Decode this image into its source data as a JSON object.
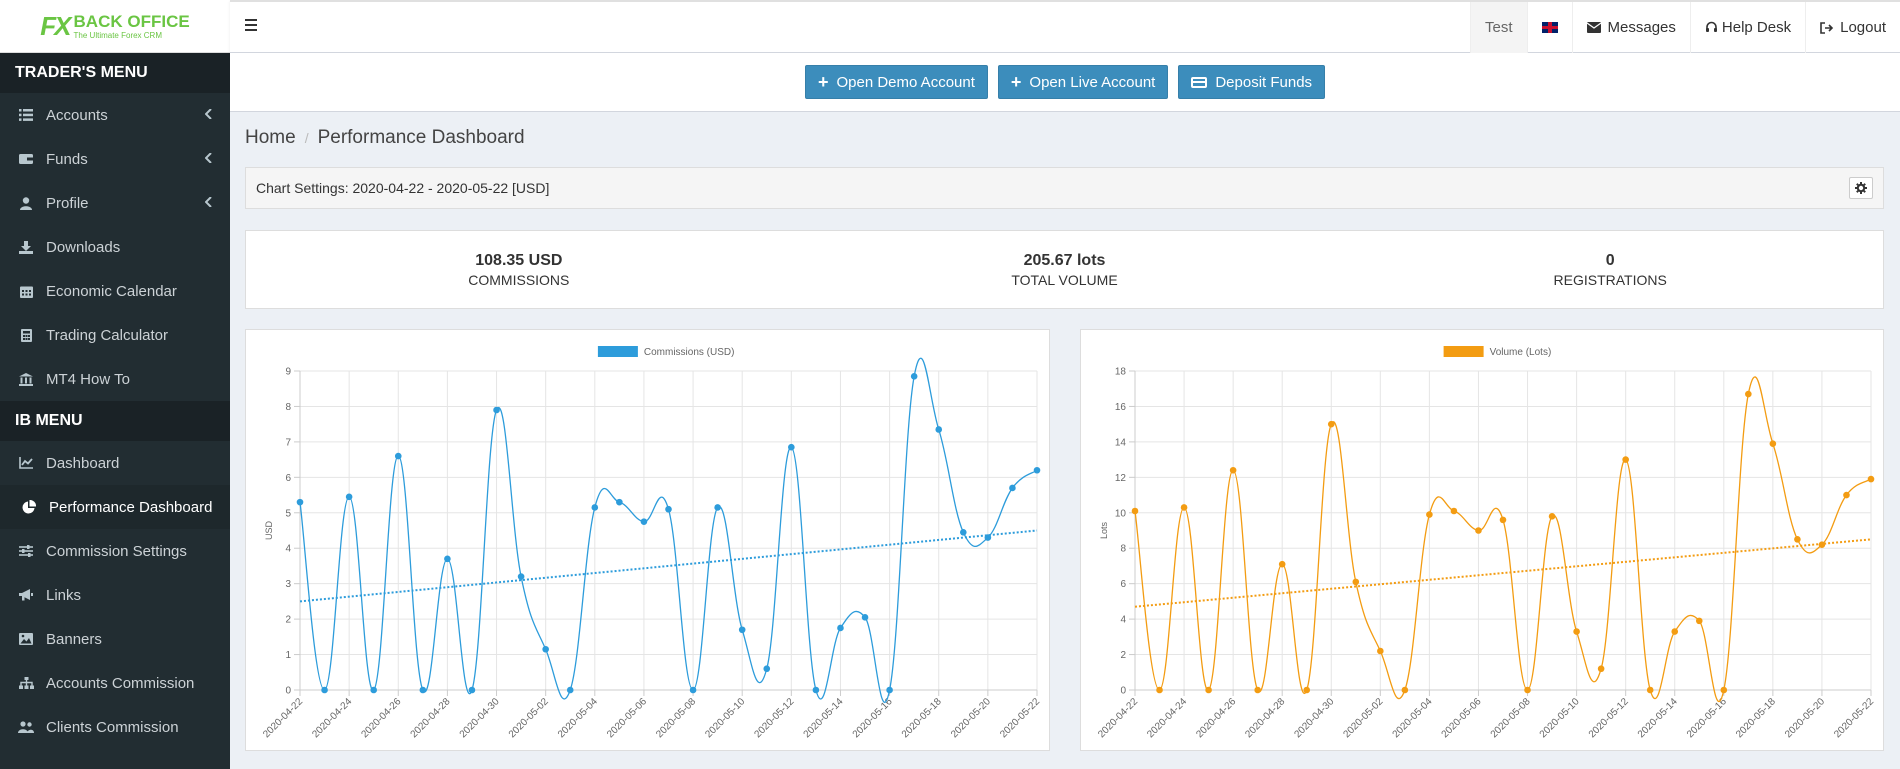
{
  "logo": {
    "mark": "FX",
    "title": "BACK OFFICE",
    "subtitle": "The Ultimate Forex CRM"
  },
  "sidebar": {
    "traders_header": "TRADER'S MENU",
    "traders_items": [
      {
        "label": "Accounts",
        "icon": "list-icon",
        "has_submenu": true
      },
      {
        "label": "Funds",
        "icon": "wallet-icon",
        "has_submenu": true
      },
      {
        "label": "Profile",
        "icon": "user-icon",
        "has_submenu": true
      },
      {
        "label": "Downloads",
        "icon": "download-icon",
        "has_submenu": false
      },
      {
        "label": "Economic Calendar",
        "icon": "calendar-icon",
        "has_submenu": false
      },
      {
        "label": "Trading Calculator",
        "icon": "calculator-icon",
        "has_submenu": false
      },
      {
        "label": "MT4 How To",
        "icon": "bank-icon",
        "has_submenu": false
      }
    ],
    "ib_header": "IB MENU",
    "ib_items": [
      {
        "label": "Dashboard",
        "icon": "line-chart-icon",
        "active": false
      },
      {
        "label": "Performance Dashboard",
        "icon": "pie-chart-icon",
        "active": true
      },
      {
        "label": "Commission Settings",
        "icon": "sliders-icon",
        "active": false
      },
      {
        "label": "Links",
        "icon": "megaphone-icon",
        "active": false
      },
      {
        "label": "Banners",
        "icon": "image-icon",
        "active": false
      },
      {
        "label": "Accounts Commission",
        "icon": "sitemap-icon",
        "active": false
      },
      {
        "label": "Clients Commission",
        "icon": "users-icon",
        "active": false
      }
    ]
  },
  "topbar": {
    "user": "Test",
    "messages": "Messages",
    "help_desk": "Help Desk",
    "logout": "Logout"
  },
  "actions": {
    "open_demo": "Open Demo Account",
    "open_live": "Open Live Account",
    "deposit": "Deposit Funds"
  },
  "breadcrumb": {
    "home": "Home",
    "current": "Performance Dashboard"
  },
  "chart_settings": "Chart Settings: 2020-04-22 - 2020-05-22 [USD]",
  "stats": [
    {
      "value": "108.35 USD",
      "label": "COMMISSIONS"
    },
    {
      "value": "205.67 lots",
      "label": "TOTAL VOLUME"
    },
    {
      "value": "0",
      "label": "REGISTRATIONS"
    }
  ],
  "chart_data": [
    {
      "type": "line",
      "legend": "Commissions (USD)",
      "ylabel": "USD",
      "color": "#2d9cdb",
      "ylim": [
        0,
        9
      ],
      "yticks": [
        0,
        1,
        2,
        3,
        4,
        5,
        6,
        7,
        8,
        9
      ],
      "x": [
        "2020-04-22",
        "2020-04-23",
        "2020-04-24",
        "2020-04-25",
        "2020-04-26",
        "2020-04-27",
        "2020-04-28",
        "2020-04-29",
        "2020-04-30",
        "2020-05-01",
        "2020-05-02",
        "2020-05-03",
        "2020-05-04",
        "2020-05-05",
        "2020-05-06",
        "2020-05-07",
        "2020-05-08",
        "2020-05-09",
        "2020-05-10",
        "2020-05-11",
        "2020-05-12",
        "2020-05-13",
        "2020-05-14",
        "2020-05-15",
        "2020-05-16",
        "2020-05-17",
        "2020-05-18",
        "2020-05-19",
        "2020-05-20",
        "2020-05-21",
        "2020-05-22"
      ],
      "xtick_labels": [
        "2020-04-22",
        "2020-04-24",
        "2020-04-26",
        "2020-04-28",
        "2020-04-30",
        "2020-05-02",
        "2020-05-04",
        "2020-05-06",
        "2020-05-08",
        "2020-05-10",
        "2020-05-12",
        "2020-05-14",
        "2020-05-16",
        "2020-05-18",
        "2020-05-20",
        "2020-05-22"
      ],
      "values": [
        5.3,
        0,
        5.45,
        0,
        6.6,
        0,
        3.7,
        0,
        7.9,
        3.2,
        1.15,
        0,
        5.15,
        5.3,
        4.75,
        5.1,
        0,
        5.15,
        1.7,
        0.6,
        6.85,
        0,
        1.75,
        2.05,
        0,
        8.85,
        7.35,
        4.45,
        4.3,
        5.7,
        6.2
      ],
      "trend": [
        2.5,
        4.5
      ]
    },
    {
      "type": "line",
      "legend": "Volume (Lots)",
      "ylabel": "Lots",
      "color": "#f39c12",
      "ylim": [
        0,
        18
      ],
      "yticks": [
        0,
        2,
        4,
        6,
        8,
        10,
        12,
        14,
        16,
        18
      ],
      "x": [
        "2020-04-22",
        "2020-04-23",
        "2020-04-24",
        "2020-04-25",
        "2020-04-26",
        "2020-04-27",
        "2020-04-28",
        "2020-04-29",
        "2020-04-30",
        "2020-05-01",
        "2020-05-02",
        "2020-05-03",
        "2020-05-04",
        "2020-05-05",
        "2020-05-06",
        "2020-05-07",
        "2020-05-08",
        "2020-05-09",
        "2020-05-10",
        "2020-05-11",
        "2020-05-12",
        "2020-05-13",
        "2020-05-14",
        "2020-05-15",
        "2020-05-16",
        "2020-05-17",
        "2020-05-18",
        "2020-05-19",
        "2020-05-20",
        "2020-05-21",
        "2020-05-22"
      ],
      "xtick_labels": [
        "2020-04-22",
        "2020-04-24",
        "2020-04-26",
        "2020-04-28",
        "2020-04-30",
        "2020-05-02",
        "2020-05-04",
        "2020-05-06",
        "2020-05-08",
        "2020-05-10",
        "2020-05-12",
        "2020-05-14",
        "2020-05-16",
        "2020-05-18",
        "2020-05-20",
        "2020-05-22"
      ],
      "values": [
        10.1,
        0,
        10.3,
        0,
        12.4,
        0,
        7.1,
        0,
        15.0,
        6.1,
        2.2,
        0,
        9.9,
        10.1,
        9.0,
        9.6,
        0,
        9.8,
        3.3,
        1.2,
        13.0,
        0,
        3.3,
        3.9,
        0,
        16.7,
        13.9,
        8.5,
        8.2,
        11.0,
        11.9
      ],
      "trend": [
        4.7,
        8.5
      ]
    }
  ]
}
